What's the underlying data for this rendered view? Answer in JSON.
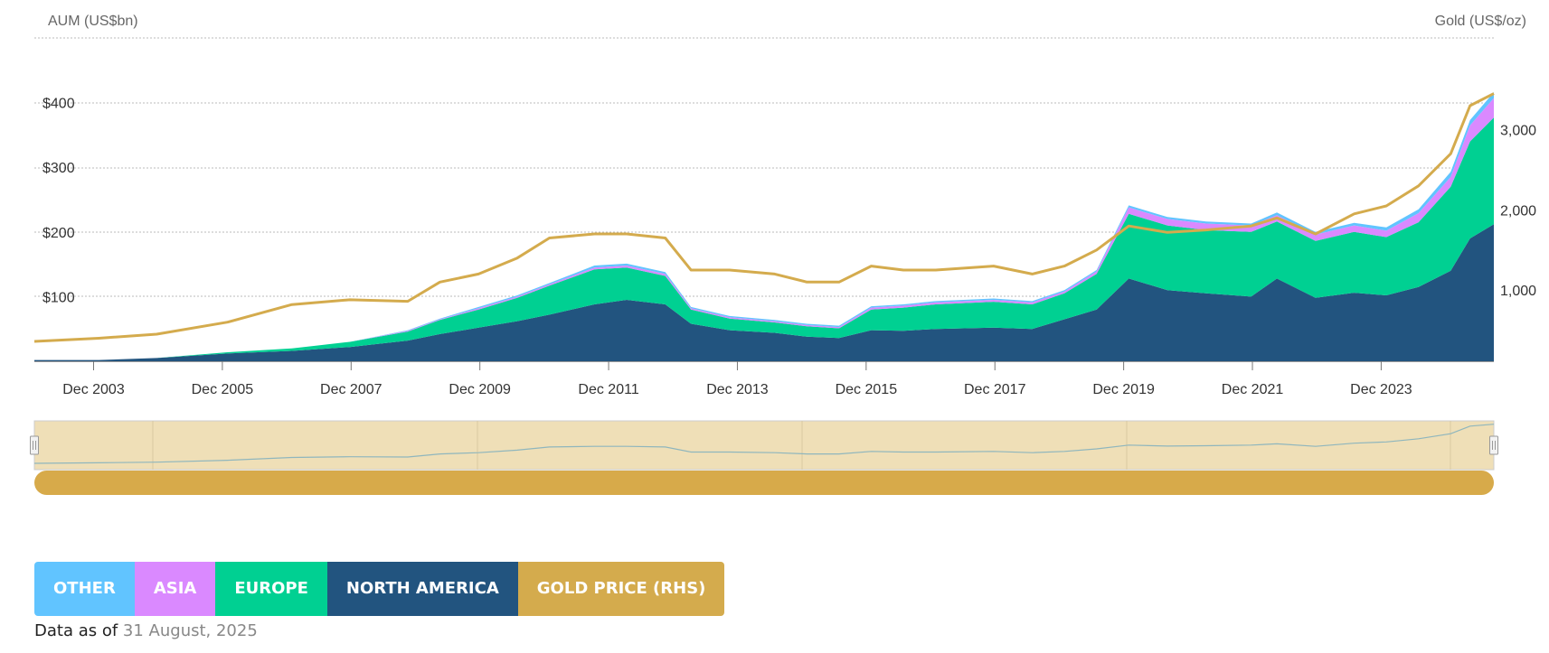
{
  "chart_data": {
    "type": "area",
    "left_axis": {
      "title": "AUM (US$bn)",
      "ticks": [
        100,
        200,
        300,
        400
      ],
      "tick_labels": [
        "$100",
        "$200",
        "$300",
        "$400"
      ],
      "range": [
        0,
        500
      ]
    },
    "right_axis": {
      "title": "Gold (US$/oz)",
      "ticks": [
        1000,
        2000,
        3000
      ],
      "tick_labels": [
        "1,000",
        "2,000",
        "3,000"
      ]
    },
    "x_range": [
      2003.0,
      2025.67
    ],
    "x_ticks": [
      2003.92,
      2005.92,
      2007.92,
      2009.92,
      2011.92,
      2013.92,
      2015.92,
      2017.92,
      2019.92,
      2021.92,
      2023.92
    ],
    "x_tick_labels": [
      "Dec 2003",
      "Dec 2005",
      "Dec 2007",
      "Dec 2009",
      "Dec 2011",
      "Dec 2013",
      "Dec 2015",
      "Dec 2017",
      "Dec 2019",
      "Dec 2021",
      "Dec 2023"
    ],
    "x": [
      2003.0,
      2004.0,
      2004.9,
      2006.0,
      2007.0,
      2007.9,
      2008.8,
      2009.3,
      2009.9,
      2010.5,
      2011.0,
      2011.7,
      2012.2,
      2012.8,
      2013.2,
      2013.8,
      2014.5,
      2015.0,
      2015.5,
      2016.0,
      2016.5,
      2017.0,
      2017.9,
      2018.5,
      2019.0,
      2019.5,
      2020.0,
      2020.6,
      2021.2,
      2021.9,
      2022.3,
      2022.9,
      2023.5,
      2024.0,
      2024.5,
      2025.0,
      2025.3,
      2025.67
    ],
    "series": [
      {
        "name": "NORTH AMERICA",
        "color": "#22547f",
        "values": [
          2,
          2,
          5,
          12,
          16,
          22,
          32,
          42,
          52,
          62,
          72,
          88,
          95,
          88,
          58,
          48,
          44,
          38,
          36,
          48,
          47,
          50,
          52,
          50,
          65,
          80,
          128,
          110,
          105,
          100,
          128,
          98,
          106,
          102,
          115,
          140,
          190,
          212
        ]
      },
      {
        "name": "EUROPE",
        "color": "#00d092",
        "values": [
          0,
          0,
          0,
          2,
          4,
          8,
          14,
          22,
          28,
          36,
          45,
          54,
          50,
          44,
          22,
          18,
          16,
          16,
          15,
          32,
          36,
          38,
          40,
          38,
          40,
          55,
          100,
          100,
          98,
          100,
          88,
          88,
          94,
          90,
          100,
          130,
          150,
          165
        ]
      },
      {
        "name": "ASIA",
        "color": "#da89ff",
        "values": [
          0,
          0,
          0,
          0,
          0,
          0,
          1,
          1,
          2,
          2,
          2,
          3,
          3,
          3,
          2,
          2,
          2,
          2,
          2,
          3,
          3,
          3,
          3,
          3,
          3,
          4,
          10,
          10,
          10,
          10,
          10,
          10,
          10,
          10,
          14,
          15,
          25,
          30
        ]
      },
      {
        "name": "OTHER",
        "color": "#61c4ff",
        "values": [
          0,
          0,
          0,
          0,
          0,
          0,
          1,
          1,
          2,
          2,
          2,
          3,
          3,
          3,
          2,
          2,
          2,
          2,
          2,
          2,
          2,
          2,
          2,
          2,
          2,
          2,
          3,
          3,
          3,
          3,
          4,
          4,
          4,
          5,
          6,
          8,
          8,
          9
        ]
      },
      {
        "name": "GOLD PRICE (RHS)",
        "color": "#d4ab4d",
        "values": [
          360,
          400,
          450,
          600,
          820,
          880,
          860,
          1100,
          1200,
          1400,
          1650,
          1700,
          1700,
          1650,
          1250,
          1250,
          1200,
          1100,
          1100,
          1300,
          1250,
          1250,
          1300,
          1200,
          1300,
          1500,
          1800,
          1720,
          1750,
          1800,
          1900,
          1700,
          1950,
          2050,
          2300,
          2700,
          3300,
          3450
        ]
      }
    ]
  },
  "legend": {
    "items": [
      {
        "label": "OTHER",
        "color": "#61c4ff"
      },
      {
        "label": "ASIA",
        "color": "#da89ff"
      },
      {
        "label": "EUROPE",
        "color": "#00d092"
      },
      {
        "label": "NORTH AMERICA",
        "color": "#22547f"
      },
      {
        "label": "GOLD PRICE (RHS)",
        "color": "#d4ab4d"
      }
    ]
  },
  "footer": {
    "prefix": "Data as of",
    "date": "31 August, 2025"
  }
}
